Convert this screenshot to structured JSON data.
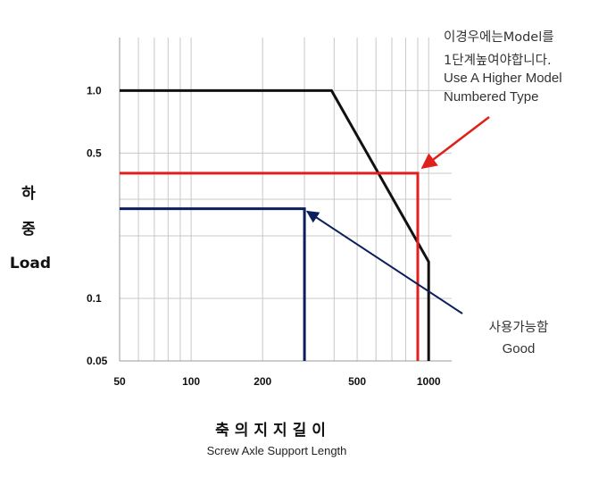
{
  "chart_data": {
    "type": "line",
    "xscale": "log",
    "yscale": "log",
    "xlim": [
      50,
      1250
    ],
    "ylim": [
      0.05,
      1.8
    ],
    "grid": true,
    "xticks": [
      50,
      100,
      200,
      500,
      1000
    ],
    "yticks": [
      0.05,
      0.1,
      0.5,
      1.0
    ],
    "xtick_labels": [
      "50",
      "100",
      "200",
      "500",
      "1000"
    ],
    "ytick_labels": [
      "0.05",
      "0.1",
      "0.5",
      "1.0"
    ],
    "ylabel_ko": [
      "하",
      "중"
    ],
    "ylabel_en": "Load",
    "xlabel_ko": "축의지지길이",
    "xlabel_en": "Screw Axle Support Length",
    "series": [
      {
        "color": "#111111",
        "points": [
          [
            50,
            1.0
          ],
          [
            390,
            1.0
          ],
          [
            1000,
            0.15
          ],
          [
            1000,
            0.05
          ]
        ]
      },
      {
        "color": "#e0201c",
        "points": [
          [
            50,
            0.4
          ],
          [
            900,
            0.4
          ],
          [
            900,
            0.05
          ]
        ]
      },
      {
        "color": "#0a1f5c",
        "points": [
          [
            50,
            0.27
          ],
          [
            300,
            0.27
          ],
          [
            300,
            0.05
          ]
        ]
      }
    ],
    "annotations": [
      {
        "lines": [
          "이경우에는Model를",
          "1단계높여야합니다.",
          "Use A Higher Model",
          "Numbered Type"
        ],
        "color": "#e0201c",
        "point": [
          900,
          0.4
        ]
      },
      {
        "lines": [
          "사용가능함",
          "Good"
        ],
        "color": "#0a1f5c",
        "point": [
          300,
          0.27
        ]
      }
    ]
  }
}
